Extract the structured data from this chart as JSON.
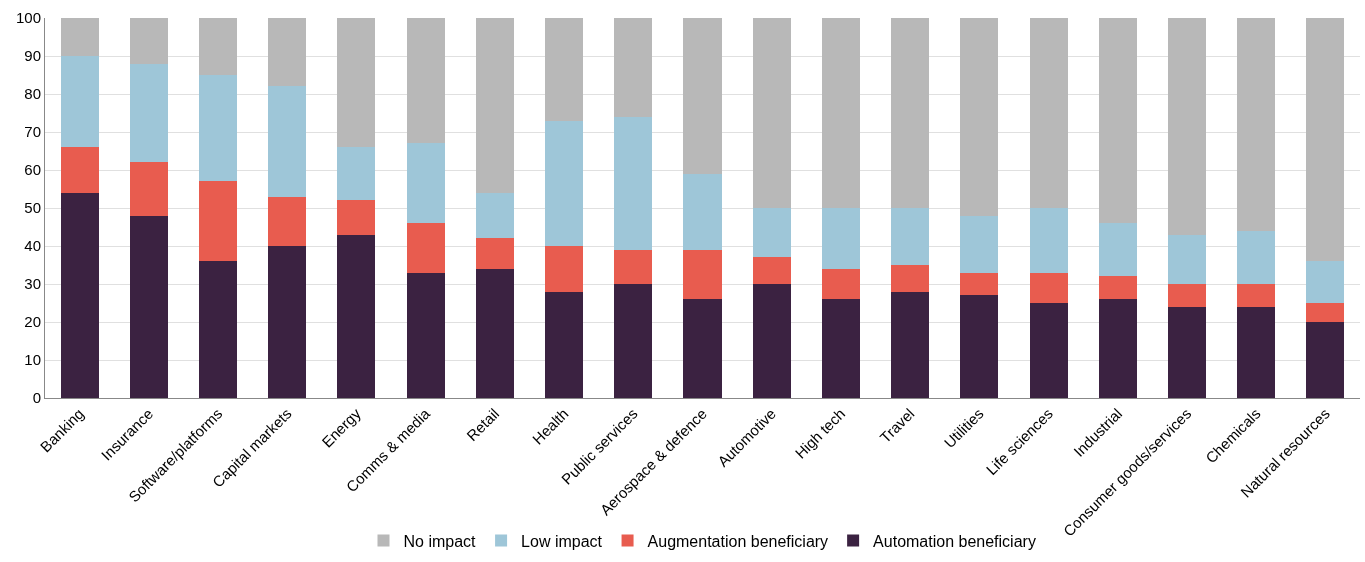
{
  "chart_data": {
    "type": "bar",
    "stacked": true,
    "categories": [
      "Banking",
      "Insurance",
      "Software/platforms",
      "Capital markets",
      "Energy",
      "Comms & media",
      "Retail",
      "Health",
      "Public services",
      "Aerospace & defence",
      "Automotive",
      "High tech",
      "Travel",
      "Utilities",
      "Life sciences",
      "Industrial",
      "Consumer goods/services",
      "Chemicals",
      "Natural resources"
    ],
    "series": [
      {
        "name": "Automation beneficiary",
        "color": "#3b2241",
        "values": [
          54,
          48,
          36,
          40,
          43,
          33,
          34,
          28,
          30,
          26,
          30,
          26,
          28,
          27,
          25,
          26,
          24,
          24,
          20
        ]
      },
      {
        "name": "Augmentation beneficiary",
        "color": "#e85c4f",
        "values": [
          12,
          14,
          21,
          13,
          9,
          13,
          8,
          12,
          9,
          13,
          7,
          8,
          7,
          6,
          8,
          6,
          6,
          6,
          5
        ]
      },
      {
        "name": "Low impact",
        "color": "#9ec6d8",
        "values": [
          24,
          26,
          28,
          29,
          14,
          21,
          12,
          33,
          35,
          20,
          13,
          16,
          15,
          15,
          17,
          14,
          13,
          14,
          11
        ]
      },
      {
        "name": "No impact",
        "color": "#b8b8b8",
        "values": [
          10,
          12,
          15,
          18,
          34,
          33,
          46,
          27,
          26,
          41,
          50,
          50,
          50,
          52,
          50,
          54,
          57,
          56,
          64
        ]
      }
    ],
    "ylim": [
      0,
      100
    ],
    "yticks": [
      0,
      10,
      20,
      30,
      40,
      50,
      60,
      70,
      80,
      90,
      100
    ],
    "grid": "y",
    "legend": "bottom"
  }
}
